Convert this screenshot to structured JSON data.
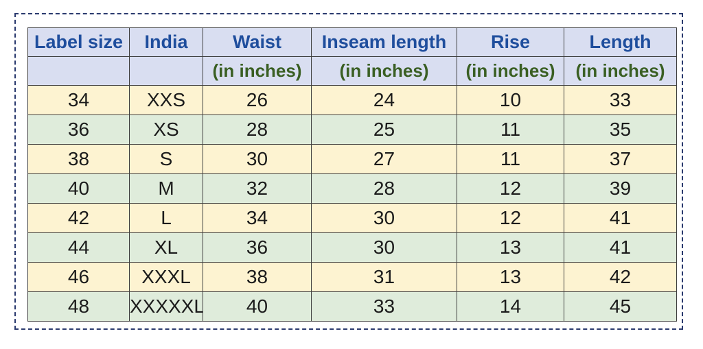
{
  "colors": {
    "frame_border": "#2a3a6e",
    "header_bg": "#d9def1",
    "header_text": "#1f4e9d",
    "subheader_text": "#3a5f23",
    "row_cream_bg": "#fdf3d1",
    "row_green_bg": "#dfecdb",
    "cell_border": "#3f3f3f",
    "data_text": "#1b1b1b"
  },
  "chart_data": {
    "type": "table",
    "title": "",
    "columns": [
      {
        "label": "Label size",
        "sub": ""
      },
      {
        "label": "India",
        "sub": ""
      },
      {
        "label": "Waist",
        "sub": "(in inches)"
      },
      {
        "label": "Inseam length",
        "sub": "(in inches)"
      },
      {
        "label": "Rise",
        "sub": "(in inches)"
      },
      {
        "label": "Length",
        "sub": "(in inches)"
      }
    ],
    "rows": [
      [
        "34",
        "XXS",
        "26",
        "24",
        "10",
        "33"
      ],
      [
        "36",
        "XS",
        "28",
        "25",
        "11",
        "35"
      ],
      [
        "38",
        "S",
        "30",
        "27",
        "11",
        "37"
      ],
      [
        "40",
        "M",
        "32",
        "28",
        "12",
        "39"
      ],
      [
        "42",
        "L",
        "34",
        "30",
        "12",
        "41"
      ],
      [
        "44",
        "XL",
        "36",
        "30",
        "13",
        "41"
      ],
      [
        "46",
        "XXXL",
        "38",
        "31",
        "13",
        "42"
      ],
      [
        "48",
        "XXXXXL",
        "40",
        "33",
        "14",
        "45"
      ]
    ]
  }
}
